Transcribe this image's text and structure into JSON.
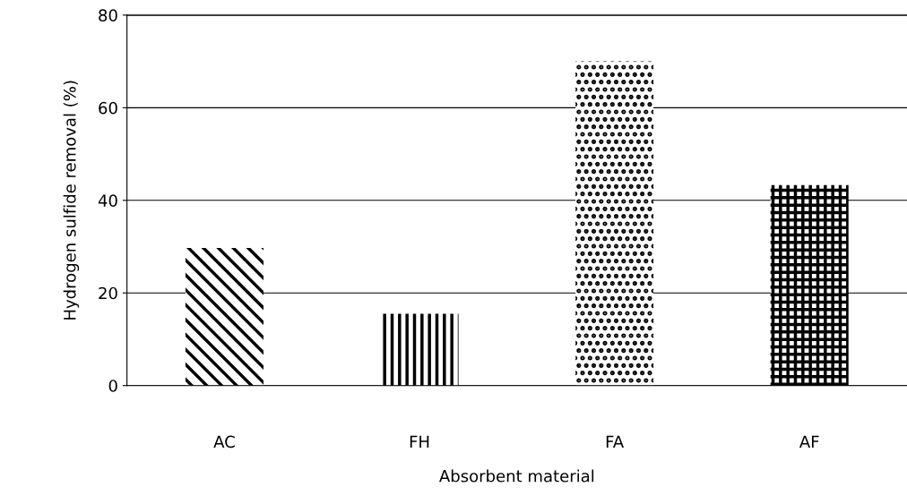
{
  "chart_data": {
    "type": "bar",
    "xlabel": "Absorbent material",
    "ylabel": "Hydrogen sulfide removal (%)",
    "categories": [
      "AC",
      "FH",
      "FA",
      "AF"
    ],
    "values": [
      29.7,
      15.5,
      70,
      43.3
    ],
    "color": "#000000",
    "ylim": [
      0,
      80
    ],
    "yticks": [
      0,
      20,
      40,
      60,
      80
    ],
    "grid": "y"
  }
}
